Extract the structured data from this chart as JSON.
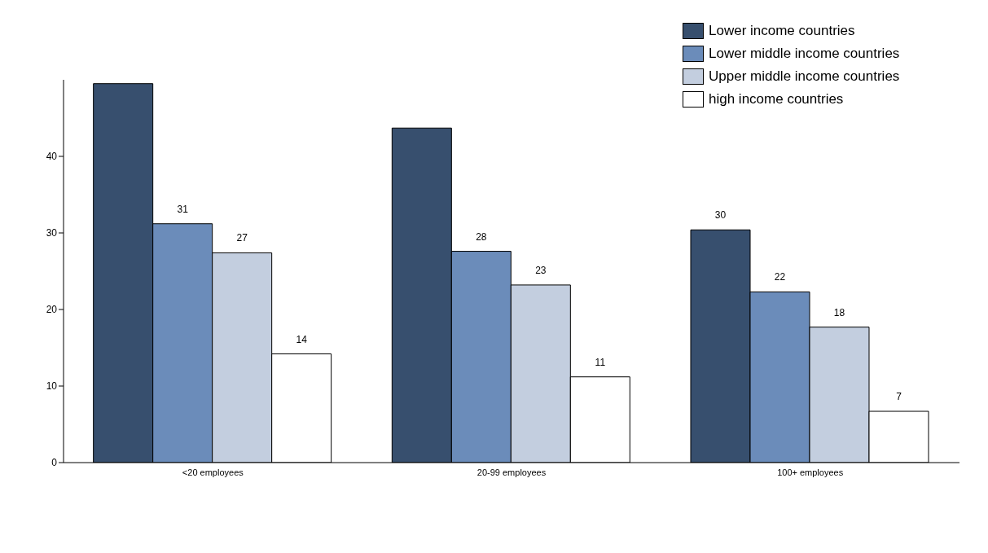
{
  "chart_data": {
    "type": "bar",
    "categories": [
      "<20 employees",
      "20-99 employees",
      "100+ employees"
    ],
    "series": [
      {
        "name": "Lower income countries",
        "color": "#374f6e",
        "values": [
          49.5,
          43.7,
          30.4
        ],
        "value_labels": [
          null,
          null,
          "30"
        ]
      },
      {
        "name": "Lower middle income countries",
        "color": "#6b8cba",
        "values": [
          31.2,
          27.6,
          22.3
        ],
        "value_labels": [
          "31",
          "28",
          "22"
        ]
      },
      {
        "name": "Upper middle income countries",
        "color": "#c3cedf",
        "values": [
          27.4,
          23.2,
          17.7
        ],
        "value_labels": [
          "27",
          "23",
          "18"
        ]
      },
      {
        "name": "high income countries",
        "color": "#ffffff",
        "values": [
          14.2,
          11.2,
          6.7
        ],
        "value_labels": [
          "14",
          "11",
          "7"
        ]
      }
    ],
    "ylim": [
      0,
      50
    ],
    "yticks": [
      0,
      10,
      20,
      30,
      40
    ],
    "legend": "top right"
  }
}
